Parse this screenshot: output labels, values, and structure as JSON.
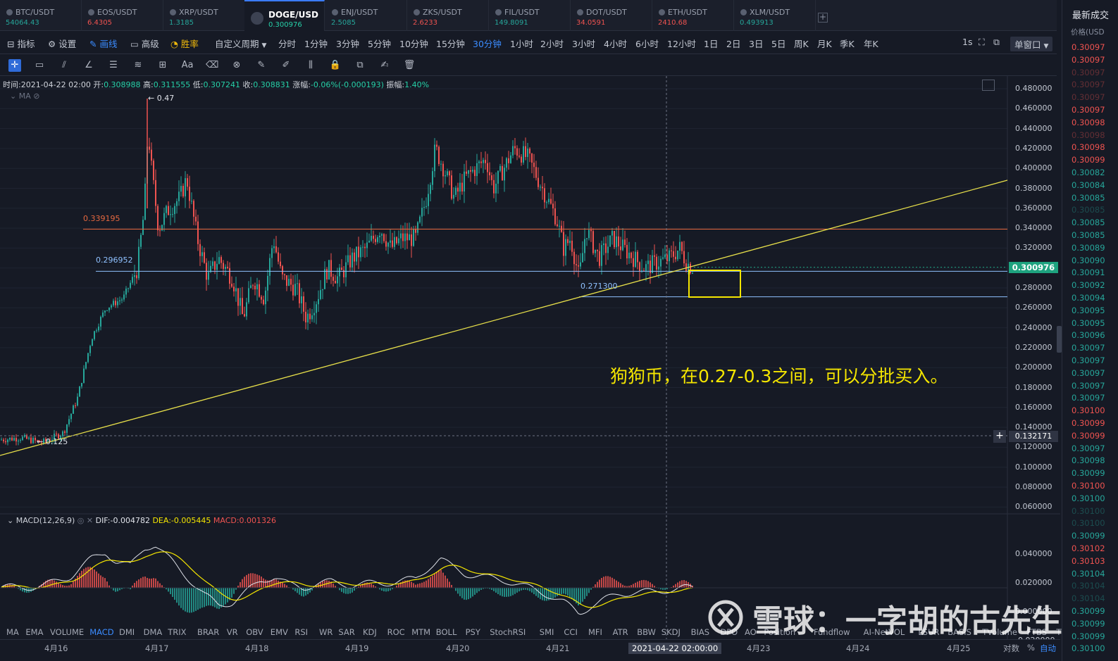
{
  "tabs": [
    {
      "coin": "BTC/USDT",
      "price": "54064.43",
      "dir": "up"
    },
    {
      "coin": "EOS/USDT",
      "price": "6.4305",
      "dir": "dn"
    },
    {
      "coin": "XRP/USDT",
      "price": "1.3185",
      "dir": "up"
    },
    {
      "coin": "DOGE/USD",
      "price": "0.300976",
      "dir": "up",
      "active": true
    },
    {
      "coin": "ENJ/USDT",
      "price": "2.5085",
      "dir": "up"
    },
    {
      "coin": "ZKS/USDT",
      "price": "2.6233",
      "dir": "dn"
    },
    {
      "coin": "FIL/USDT",
      "price": "149.8091",
      "dir": "up"
    },
    {
      "coin": "DOT/USDT",
      "price": "34.0591",
      "dir": "dn"
    },
    {
      "coin": "ETH/USDT",
      "price": "2410.68",
      "dir": "dn"
    },
    {
      "coin": "XLM/USDT",
      "price": "0.493913",
      "dir": "up"
    }
  ],
  "add_tab": "+",
  "toolbar": {
    "indicators": "指标",
    "settings": "设置",
    "draw": "画线",
    "advanced": "高级",
    "winrate": "胜率",
    "custom_period": "自定义周期",
    "periods": [
      "分时",
      "1分钟",
      "3分钟",
      "5分钟",
      "10分钟",
      "15分钟",
      "30分钟",
      "1小时",
      "2小时",
      "3小时",
      "4小时",
      "6小时",
      "12小时",
      "1日",
      "2日",
      "3日",
      "5日",
      "周K",
      "月K",
      "季K",
      "年K"
    ],
    "selected_period": "30分钟",
    "interval": "1s",
    "window": "单窗口"
  },
  "drawtools": [
    "cross-tool-icon",
    "ruler-icon",
    "parallel-lines-icon",
    "angle-icon",
    "fib-lines-icon",
    "wave-icon",
    "grid-plus-icon",
    "text-icon",
    "eraser-icon",
    "magnet-icon",
    "pencil-icon",
    "brush-icon",
    "bars-icon",
    "lock-icon",
    "copy-icon",
    "edit-icon",
    "trash-icon"
  ],
  "info": {
    "time_label": "时间:",
    "time": "2021-04-22 02:00",
    "open_label": "开:",
    "open": "0.308988",
    "high_label": "高:",
    "high": "0.311555",
    "low_label": "低:",
    "low": "0.307241",
    "close_label": "收:",
    "close": "0.308831",
    "change_label": "涨幅:",
    "change": "-0.06%(-0.000193)",
    "amp_label": "振幅:",
    "amp": "1.40%"
  },
  "ma_label": "MA",
  "macd": {
    "name": "MACD(12,26,9)",
    "dif": "DIF:-0.004782",
    "dea": "DEA:-0.005445",
    "macd": "MACD:0.001326"
  },
  "indicators": [
    "MA",
    "EMA",
    "VOLUME",
    "MACD",
    "DMI",
    "DMA",
    "TRIX",
    "BRAR",
    "VR",
    "OBV",
    "EMV",
    "RSI",
    "WR",
    "SAR",
    "KDJ",
    "ROC",
    "MTM",
    "BOLL",
    "PSY",
    "StochRSI",
    "SMI",
    "CCI",
    "MFI",
    "ATR",
    "BBW",
    "SKDJ",
    "BIAS",
    "DPO",
    "AO",
    "Position",
    "Fundflow",
    "AI-NetVOL",
    "LSUR",
    "BASIS",
    "TVolume",
    "FTBS",
    "TTSI"
  ],
  "selected_indicator": "MACD",
  "dates": [
    "4月16",
    "4月17",
    "4月18",
    "4月19",
    "4月20",
    "4月21",
    "2021-04-22 02:00:00",
    "4月23",
    "4月24",
    "4月25"
  ],
  "date_controls": {
    "log": "对数",
    "pct": "%",
    "auto": "自动"
  },
  "price_axis": [
    "0.480000",
    "0.460000",
    "0.440000",
    "0.420000",
    "0.400000",
    "0.380000",
    "0.360000",
    "0.340000",
    "0.320000",
    "0.300000",
    "0.280000",
    "0.260000",
    "0.240000",
    "0.220000",
    "0.200000",
    "0.180000",
    "0.160000",
    "0.140000",
    "0.120000",
    "0.100000",
    "0.080000",
    "0.060000"
  ],
  "macd_axis": [
    "0.040000",
    "0.020000",
    "0.000000",
    "-0.020000"
  ],
  "current_price": "0.300976",
  "crosshair_price": "0.132171",
  "crosshair_plus": "+",
  "levels": {
    "resistance": "0.339195",
    "support": "0.296952",
    "low": "0.271300",
    "peak": "← 0.47",
    "bottom": "← 0.125"
  },
  "annotation": "狗狗币，在0.27-0.3之间，可以分批买入。",
  "watermark": "雪球：一字胡的古先生",
  "right_panel": {
    "header": "最新成交",
    "sub": "价格(USD",
    "prices": [
      {
        "v": "0.30097",
        "dir": "dn"
      },
      {
        "v": "0.30097",
        "dir": "dn"
      },
      {
        "v": "0.30097",
        "dir": "dn",
        "fade": true
      },
      {
        "v": "0.30097",
        "dir": "dn",
        "fade": true
      },
      {
        "v": "0.30097",
        "dir": "dn",
        "fade": true
      },
      {
        "v": "0.30097",
        "dir": "dn"
      },
      {
        "v": "0.30098",
        "dir": "dn"
      },
      {
        "v": "0.30098",
        "dir": "dn",
        "fade": true
      },
      {
        "v": "0.30098",
        "dir": "dn"
      },
      {
        "v": "0.30099",
        "dir": "dn"
      },
      {
        "v": "0.30082",
        "dir": "up"
      },
      {
        "v": "0.30084",
        "dir": "up"
      },
      {
        "v": "0.30085",
        "dir": "up"
      },
      {
        "v": "0.30085",
        "dir": "up",
        "fade": true
      },
      {
        "v": "0.30085",
        "dir": "up"
      },
      {
        "v": "0.30085",
        "dir": "up"
      },
      {
        "v": "0.30089",
        "dir": "up"
      },
      {
        "v": "0.30090",
        "dir": "up"
      },
      {
        "v": "0.30091",
        "dir": "up"
      },
      {
        "v": "0.30092",
        "dir": "up"
      },
      {
        "v": "0.30094",
        "dir": "up"
      },
      {
        "v": "0.30095",
        "dir": "up"
      },
      {
        "v": "0.30095",
        "dir": "up"
      },
      {
        "v": "0.30096",
        "dir": "up"
      },
      {
        "v": "0.30097",
        "dir": "up"
      },
      {
        "v": "0.30097",
        "dir": "up"
      },
      {
        "v": "0.30097",
        "dir": "up"
      },
      {
        "v": "0.30097",
        "dir": "up"
      },
      {
        "v": "0.30097",
        "dir": "up"
      },
      {
        "v": "0.30100",
        "dir": "dn"
      },
      {
        "v": "0.30099",
        "dir": "dn"
      },
      {
        "v": "0.30099",
        "dir": "dn"
      },
      {
        "v": "0.30097",
        "dir": "up"
      },
      {
        "v": "0.30098",
        "dir": "up"
      },
      {
        "v": "0.30099",
        "dir": "up"
      },
      {
        "v": "0.30100",
        "dir": "dn"
      },
      {
        "v": "0.30100",
        "dir": "up"
      },
      {
        "v": "0.30100",
        "dir": "up",
        "fade": true
      },
      {
        "v": "0.30100",
        "dir": "up",
        "fade": true
      },
      {
        "v": "0.30099",
        "dir": "up"
      },
      {
        "v": "0.30102",
        "dir": "dn"
      },
      {
        "v": "0.30103",
        "dir": "dn"
      },
      {
        "v": "0.30104",
        "dir": "up"
      },
      {
        "v": "0.30104",
        "dir": "up",
        "fade": true
      },
      {
        "v": "0.30104",
        "dir": "up",
        "fade": true
      },
      {
        "v": "0.30099",
        "dir": "up"
      },
      {
        "v": "0.30099",
        "dir": "up"
      },
      {
        "v": "0.30099",
        "dir": "up"
      },
      {
        "v": "0.30100",
        "dir": "up"
      }
    ]
  },
  "colors": {
    "up": "#26a69a",
    "down": "#ef5350",
    "accent": "#3b8cff",
    "annotation": "#f5e600",
    "resistance": "#e6683f",
    "support": "#7fb4ff",
    "trend": "#e8e04a"
  }
}
